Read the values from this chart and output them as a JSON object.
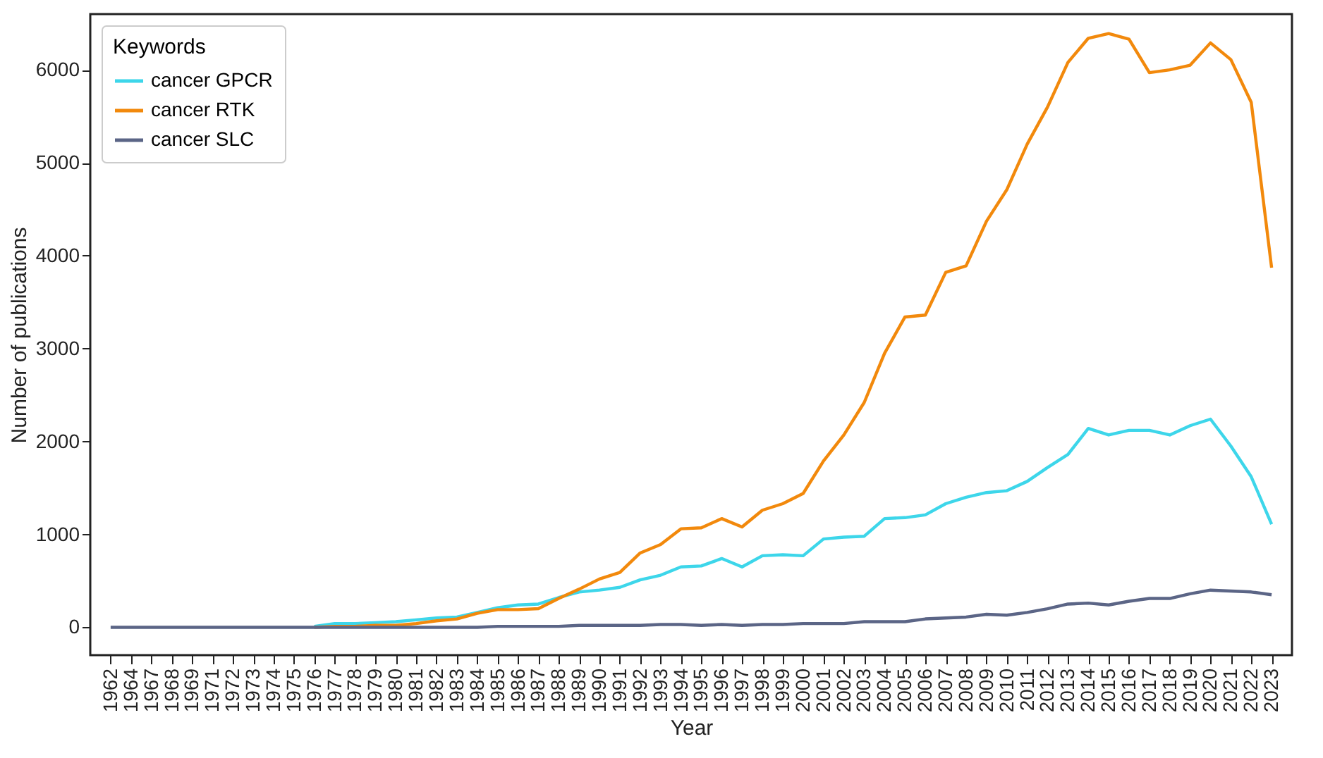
{
  "chart_data": {
    "type": "line",
    "xlabel": "Year",
    "ylabel": "Number of publications",
    "legend_title": "Keywords",
    "legend": "top left",
    "grid": false,
    "line_style": "solid",
    "marker": "none",
    "categories": [
      "1962",
      "1964",
      "1967",
      "1968",
      "1969",
      "1971",
      "1972",
      "1973",
      "1974",
      "1975",
      "1976",
      "1977",
      "1978",
      "1979",
      "1980",
      "1981",
      "1982",
      "1983",
      "1984",
      "1985",
      "1986",
      "1987",
      "1988",
      "1989",
      "1990",
      "1991",
      "1992",
      "1993",
      "1994",
      "1995",
      "1996",
      "1997",
      "1998",
      "1999",
      "2000",
      "2001",
      "2002",
      "2003",
      "2004",
      "2005",
      "2006",
      "2007",
      "2008",
      "2009",
      "2010",
      "2011",
      "2012",
      "2013",
      "2014",
      "2015",
      "2016",
      "2017",
      "2018",
      "2019",
      "2020",
      "2021",
      "2022",
      "2023"
    ],
    "ylim": [
      -300,
      6600
    ],
    "yticks": [
      0,
      1000,
      2000,
      3000,
      4000,
      5000,
      6000
    ],
    "series": [
      {
        "name": "cancer GPCR",
        "color": "#3dd6ea",
        "values": [
          null,
          null,
          null,
          null,
          null,
          null,
          null,
          null,
          null,
          null,
          10,
          40,
          40,
          50,
          60,
          80,
          100,
          110,
          160,
          210,
          240,
          250,
          320,
          380,
          400,
          430,
          510,
          560,
          650,
          660,
          740,
          650,
          770,
          780,
          770,
          950,
          970,
          980,
          1170,
          1180,
          1210,
          1330,
          1400,
          1450,
          1470,
          1570,
          1720,
          1860,
          2140,
          2070,
          2120,
          2120,
          2070,
          2170,
          2240,
          1950,
          1620,
          1110
        ]
      },
      {
        "name": "cancer RTK",
        "color": "#f2890c",
        "values": [
          null,
          null,
          null,
          null,
          null,
          null,
          null,
          null,
          null,
          null,
          0,
          10,
          10,
          20,
          20,
          40,
          70,
          90,
          150,
          190,
          190,
          200,
          310,
          410,
          520,
          590,
          800,
          890,
          1060,
          1070,
          1170,
          1080,
          1260,
          1330,
          1440,
          1790,
          2070,
          2420,
          2950,
          3340,
          3360,
          3820,
          3890,
          4370,
          4710,
          5200,
          5600,
          6080,
          6340,
          6390,
          6330,
          5970,
          6000,
          6050,
          6290,
          6110,
          5650,
          3870
        ]
      },
      {
        "name": "cancer SLC",
        "color": "#5b6586",
        "values": [
          0,
          0,
          0,
          0,
          0,
          0,
          0,
          0,
          0,
          0,
          0,
          0,
          0,
          0,
          0,
          0,
          0,
          0,
          0,
          10,
          10,
          10,
          10,
          20,
          20,
          20,
          20,
          30,
          30,
          20,
          30,
          20,
          30,
          30,
          40,
          40,
          40,
          60,
          60,
          60,
          90,
          100,
          110,
          140,
          130,
          160,
          200,
          250,
          260,
          240,
          280,
          310,
          310,
          360,
          400,
          390,
          380,
          350
        ]
      }
    ]
  }
}
